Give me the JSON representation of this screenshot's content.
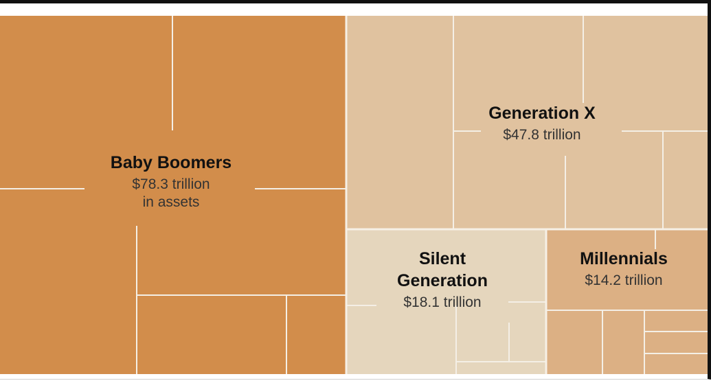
{
  "chart_data": {
    "type": "treemap",
    "unit": "trillion",
    "items": [
      {
        "id": "boomers",
        "name_lines": [
          "Baby Boomers"
        ],
        "value": 78.3,
        "label_lines": [
          "$78.3 trillion",
          "in assets"
        ],
        "color": "#d28d4b"
      },
      {
        "id": "genx",
        "name_lines": [
          "Generation X"
        ],
        "value": 47.8,
        "label_lines": [
          "$47.8 trillion"
        ],
        "color": "#e0c29f"
      },
      {
        "id": "silent",
        "name_lines": [
          "Silent",
          "Generation"
        ],
        "value": 18.1,
        "label_lines": [
          "$18.1 trillion"
        ],
        "color": "#e5d6bd"
      },
      {
        "id": "millennials",
        "name_lines": [
          "Millennials"
        ],
        "value": 14.2,
        "label_lines": [
          "$14.2 trillion"
        ],
        "color": "#dcb084"
      }
    ]
  }
}
